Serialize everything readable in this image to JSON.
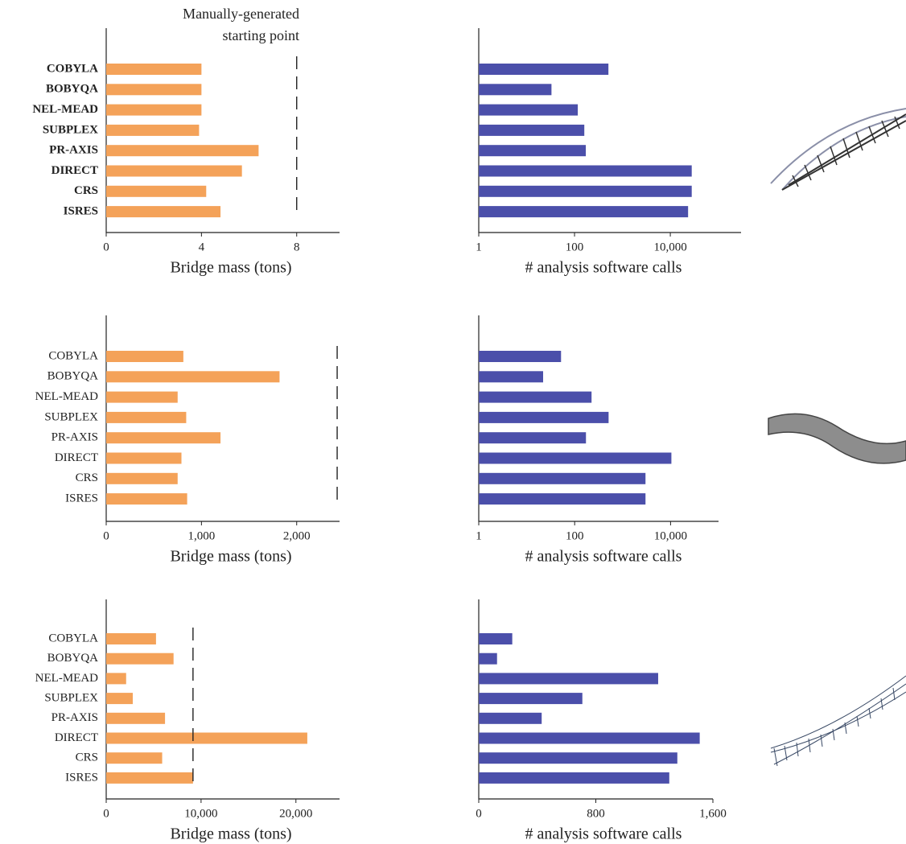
{
  "chart_data": [
    {
      "type": "bar",
      "orientation": "horizontal",
      "scale": "linear",
      "categories": [
        "COBYLA",
        "BOBYQA",
        "NEL-MEAD",
        "SUBPLEX",
        "PR-AXIS",
        "DIRECT",
        "CRS",
        "ISRES"
      ],
      "values": [
        4.0,
        4.0,
        4.0,
        3.9,
        6.4,
        5.7,
        4.2,
        4.8
      ],
      "color": "#f4a259",
      "xlim": [
        0,
        9.8
      ],
      "xticks": [
        0,
        4,
        8
      ],
      "xlabel": "Bridge mass (tons)",
      "starting_point": 8,
      "annotation": [
        "Manually-generated",
        "starting point"
      ]
    },
    {
      "type": "bar",
      "orientation": "horizontal",
      "scale": "log",
      "values": [
        510,
        33,
        117,
        160,
        172,
        28000,
        28000,
        23500
      ],
      "color": "#4b4faa",
      "xlim": [
        1,
        300000
      ],
      "xticks": [
        1,
        100,
        {
          "value": 10000,
          "label": "10,000"
        }
      ],
      "xlabel": "# analysis software calls"
    },
    {
      "type": "bar",
      "orientation": "horizontal",
      "scale": "linear",
      "categories": [
        "COBYLA",
        "BOBYQA",
        "NEL-MEAD",
        "SUBPLEX",
        "PR-AXIS",
        "DIRECT",
        "CRS",
        "ISRES"
      ],
      "values": [
        810,
        1820,
        750,
        840,
        1200,
        790,
        750,
        850
      ],
      "color": "#f4a259",
      "xlim": [
        0,
        2450
      ],
      "xticks": [
        0,
        {
          "value": 1000,
          "label": "1,000"
        },
        {
          "value": 2000,
          "label": "2,000"
        }
      ],
      "xlabel": "Bridge mass (tons)",
      "starting_point": 2425
    },
    {
      "type": "bar",
      "orientation": "horizontal",
      "scale": "log",
      "values": [
        52,
        22,
        225,
        510,
        172,
        10400,
        3000,
        3000
      ],
      "color": "#4b4faa",
      "xlim": [
        1,
        100000
      ],
      "xticks": [
        1,
        100,
        {
          "value": 10000,
          "label": "10,000"
        }
      ],
      "xlabel": "# analysis software calls"
    },
    {
      "type": "bar",
      "orientation": "horizontal",
      "scale": "linear",
      "categories": [
        "COBYLA",
        "BOBYQA",
        "NEL-MEAD",
        "SUBPLEX",
        "PR-AXIS",
        "DIRECT",
        "CRS",
        "ISRES"
      ],
      "values": [
        5250,
        7100,
        2100,
        2800,
        6200,
        21200,
        5900,
        9150
      ],
      "color": "#f4a259",
      "xlim": [
        0,
        24600
      ],
      "xticks": [
        0,
        {
          "value": 10000,
          "label": "10,000"
        },
        {
          "value": 20000,
          "label": "20,000"
        }
      ],
      "xlabel": "Bridge mass (tons)",
      "starting_point": 9150
    },
    {
      "type": "bar",
      "orientation": "horizontal",
      "scale": "linear",
      "values": [
        229,
        125,
        1226,
        708,
        430,
        1510,
        1357,
        1302
      ],
      "color": "#4b4faa",
      "xlim": [
        0,
        1600
      ],
      "xticks": [
        0,
        800,
        {
          "value": 1600,
          "label": "1,600"
        }
      ],
      "xlabel": "# analysis software calls"
    }
  ]
}
